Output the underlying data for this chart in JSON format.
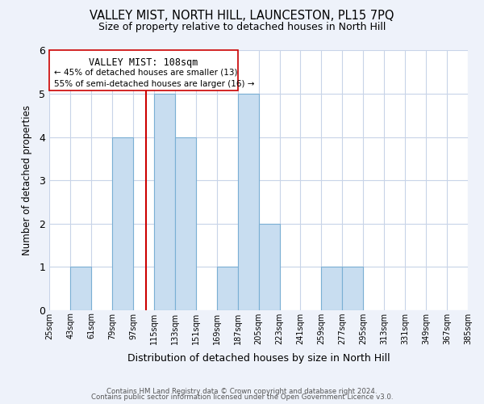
{
  "title": "VALLEY MIST, NORTH HILL, LAUNCESTON, PL15 7PQ",
  "subtitle": "Size of property relative to detached houses in North Hill",
  "xlabel": "Distribution of detached houses by size in North Hill",
  "ylabel": "Number of detached properties",
  "bar_color": "#c8ddf0",
  "bar_edge_color": "#7aafd4",
  "grid_color": "#c8d4e8",
  "vline_color": "#cc0000",
  "vline_x": 108,
  "annotation_title": "VALLEY MIST: 108sqm",
  "annotation_line1": "← 45% of detached houses are smaller (13)",
  "annotation_line2": "55% of semi-detached houses are larger (16) →",
  "bin_edges": [
    25,
    43,
    61,
    79,
    97,
    115,
    133,
    151,
    169,
    187,
    205,
    223,
    241,
    259,
    277,
    295,
    313,
    331,
    349,
    367,
    385
  ],
  "bin_labels": [
    "25sqm",
    "43sqm",
    "61sqm",
    "79sqm",
    "97sqm",
    "115sqm",
    "133sqm",
    "151sqm",
    "169sqm",
    "187sqm",
    "205sqm",
    "223sqm",
    "241sqm",
    "259sqm",
    "277sqm",
    "295sqm",
    "313sqm",
    "331sqm",
    "349sqm",
    "367sqm",
    "385sqm"
  ],
  "counts": [
    0,
    1,
    0,
    4,
    0,
    5,
    4,
    0,
    1,
    5,
    2,
    0,
    0,
    1,
    1,
    0,
    0,
    0,
    0,
    0
  ],
  "ylim": [
    0,
    6
  ],
  "yticks": [
    0,
    1,
    2,
    3,
    4,
    5,
    6
  ],
  "footer1": "Contains HM Land Registry data © Crown copyright and database right 2024.",
  "footer2": "Contains public sector information licensed under the Open Government Licence v3.0.",
  "bg_color": "#eef2fa",
  "plot_bg_color": "#ffffff"
}
